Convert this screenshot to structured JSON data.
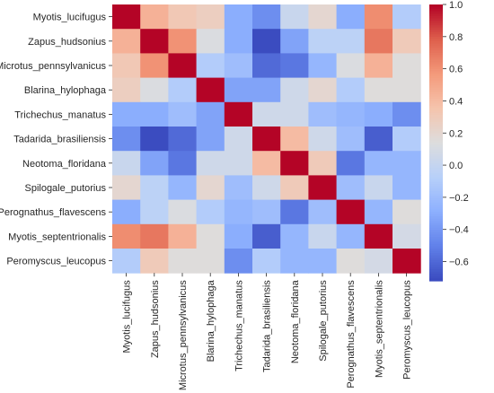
{
  "chart_data": {
    "type": "heatmap",
    "title": "",
    "xlabel": "",
    "ylabel": "",
    "rows": [
      "Myotis_lucifugus",
      "Zapus_hudsonius",
      "Microtus_pennsylvanicus",
      "Blarina_hylophaga",
      "Trichechus_manatus",
      "Tadarida_brasiliensis",
      "Neotoma_floridana",
      "Spilogale_putorius",
      "Perognathus_flavescens",
      "Myotis_septentrionalis",
      "Peromyscus_leucopus"
    ],
    "columns": [
      "Myotis_lucifugus",
      "Zapus_hudsonius",
      "Microtus_pennsylvanicus",
      "Blarina_hylophaga",
      "Trichechus_manatus",
      "Tadarida_brasiliensis",
      "Neotoma_floridana",
      "Spilogale_putorius",
      "Perognathus_flavescens",
      "Myotis_septentrionalis",
      "Peromyscus_leucopus"
    ],
    "values": [
      [
        1.0,
        0.45,
        0.32,
        0.27,
        -0.3,
        -0.45,
        0.02,
        0.2,
        -0.3,
        0.62,
        -0.1
      ],
      [
        0.45,
        1.0,
        0.6,
        0.12,
        -0.3,
        -0.75,
        -0.35,
        -0.05,
        -0.05,
        0.7,
        0.3
      ],
      [
        0.32,
        0.6,
        1.0,
        -0.1,
        -0.2,
        -0.6,
        -0.55,
        -0.25,
        0.12,
        0.45,
        0.15
      ],
      [
        0.27,
        0.12,
        -0.1,
        1.0,
        -0.35,
        -0.35,
        0.05,
        0.2,
        -0.1,
        0.15,
        0.15
      ],
      [
        -0.3,
        -0.3,
        -0.2,
        -0.35,
        1.0,
        0.05,
        0.05,
        -0.2,
        -0.25,
        -0.3,
        -0.45
      ],
      [
        -0.45,
        -0.75,
        -0.6,
        -0.35,
        0.05,
        1.0,
        0.4,
        0.05,
        -0.2,
        -0.65,
        -0.1
      ],
      [
        0.02,
        -0.35,
        -0.55,
        0.05,
        0.05,
        0.4,
        1.0,
        0.3,
        -0.55,
        -0.25,
        -0.25
      ],
      [
        0.2,
        -0.05,
        -0.25,
        0.2,
        -0.2,
        0.05,
        0.3,
        1.0,
        -0.2,
        0.02,
        -0.25
      ],
      [
        -0.3,
        -0.05,
        0.12,
        -0.1,
        -0.25,
        -0.2,
        -0.55,
        -0.2,
        1.0,
        -0.25,
        0.15
      ],
      [
        0.62,
        0.7,
        0.45,
        0.15,
        -0.3,
        -0.65,
        -0.25,
        0.02,
        -0.25,
        1.0,
        0.08
      ],
      [
        -0.1,
        0.3,
        0.15,
        0.15,
        -0.45,
        -0.1,
        -0.25,
        -0.25,
        0.15,
        0.08,
        1.0
      ]
    ],
    "colormap": "coolwarm",
    "vmin": -0.72,
    "vmax": 1.0,
    "colorbar": {
      "ticks": [
        1.0,
        0.8,
        0.6,
        0.4,
        0.2,
        0.0,
        -0.2,
        -0.4,
        -0.6
      ],
      "tick_labels": [
        "1.0",
        "0.8",
        "0.6",
        "0.4",
        "0.2",
        "0.0",
        "−0.2",
        "−0.4",
        "−0.6"
      ]
    },
    "grid": false,
    "legend": "colorbar-right"
  }
}
